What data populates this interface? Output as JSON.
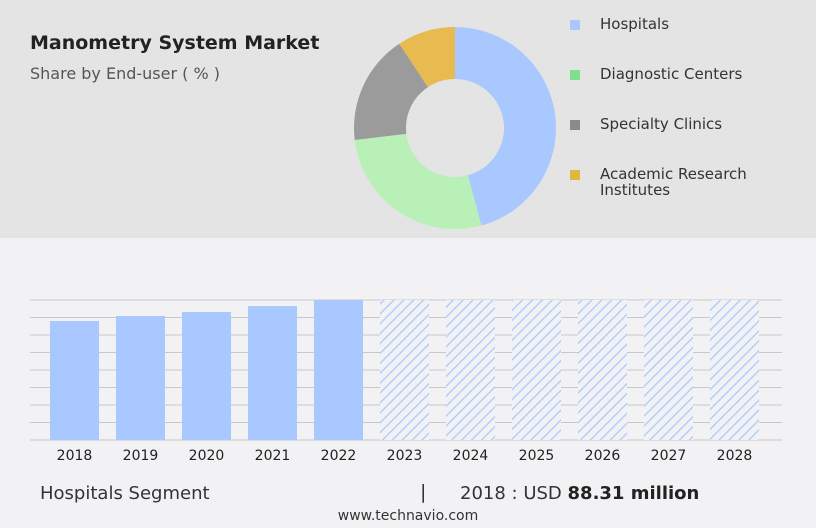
{
  "header": {
    "title": "Manometry System Market",
    "subtitle": "Share by End-user ( % )"
  },
  "chart_data": [
    {
      "type": "pie",
      "donut": true,
      "title": "Manometry System Market",
      "subtitle": "Share by End-user ( % )",
      "legend_placement": "right",
      "slices": [
        {
          "name": "Hospitals",
          "value": 45.8,
          "color": "#a8c8ff"
        },
        {
          "name": "Diagnostic Centers",
          "value": 27.3,
          "color": "#b8f0b8"
        },
        {
          "name": "Specialty Clinics",
          "value": 17.6,
          "color": "#9b9b9b"
        },
        {
          "name": "Academic Research Institutes",
          "value": 9.3,
          "color": "#e8bb50"
        }
      ]
    },
    {
      "type": "bar",
      "grid": true,
      "categories": [
        "2018",
        "2019",
        "2020",
        "2021",
        "2022",
        "2023",
        "2024",
        "2025",
        "2026",
        "2027",
        "2028"
      ],
      "values": [
        88.31,
        92.0,
        95.0,
        99.4,
        103.9,
        null,
        null,
        null,
        null,
        null,
        null
      ],
      "forecast_from": "2023",
      "color": "#a8c8ff",
      "unit": "USD million"
    }
  ],
  "legend": [
    "Hospitals",
    "Diagnostic Centers",
    "Specialty Clinics",
    "Academic Research Institutes"
  ],
  "footer": {
    "segment": "Hospitals Segment",
    "separator": "|",
    "year_label": "2018 : USD",
    "value": "88.31 million",
    "site": "www.technavio.com"
  }
}
